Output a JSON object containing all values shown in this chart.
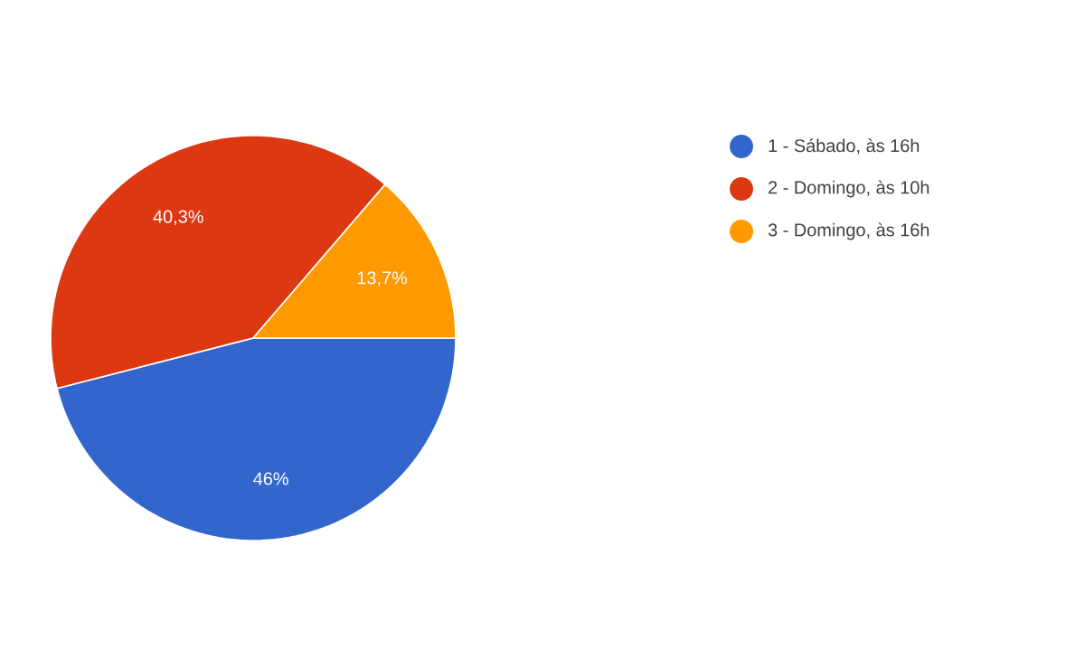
{
  "chart_data": {
    "type": "pie",
    "categories": [
      "1 - Sábado, às 16h",
      "2 - Domingo, às 10h",
      "3 - Domingo, às 16h"
    ],
    "values": [
      46,
      40.3,
      13.7
    ],
    "colors": [
      "#3366cc",
      "#dc3912",
      "#ff9900"
    ],
    "value_labels": [
      "46%",
      "40,3%",
      "13,7%"
    ],
    "legend": "right"
  }
}
